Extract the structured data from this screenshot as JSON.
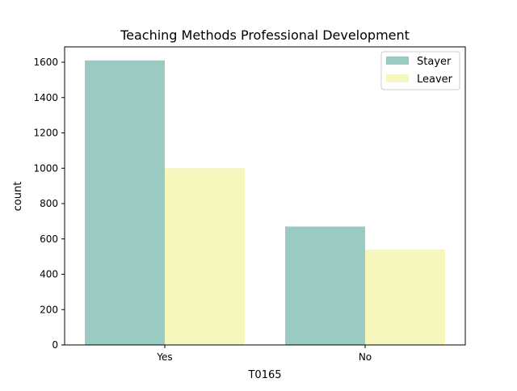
{
  "chart_data": {
    "type": "bar",
    "title": "Teaching Methods Professional Development",
    "xlabel": "T0165",
    "ylabel": "count",
    "categories": [
      "Yes",
      "No"
    ],
    "series": [
      {
        "name": "Stayer",
        "values": [
          1610,
          670
        ],
        "color": "#99cbc3"
      },
      {
        "name": "Leaver",
        "values": [
          1000,
          540
        ],
        "color": "#f6f7bd"
      }
    ],
    "ylim": [
      0,
      1600
    ],
    "yticks": [
      0,
      200,
      400,
      600,
      800,
      1000,
      1200,
      1400,
      1600
    ],
    "grid": false,
    "legend_position": "top-right"
  }
}
